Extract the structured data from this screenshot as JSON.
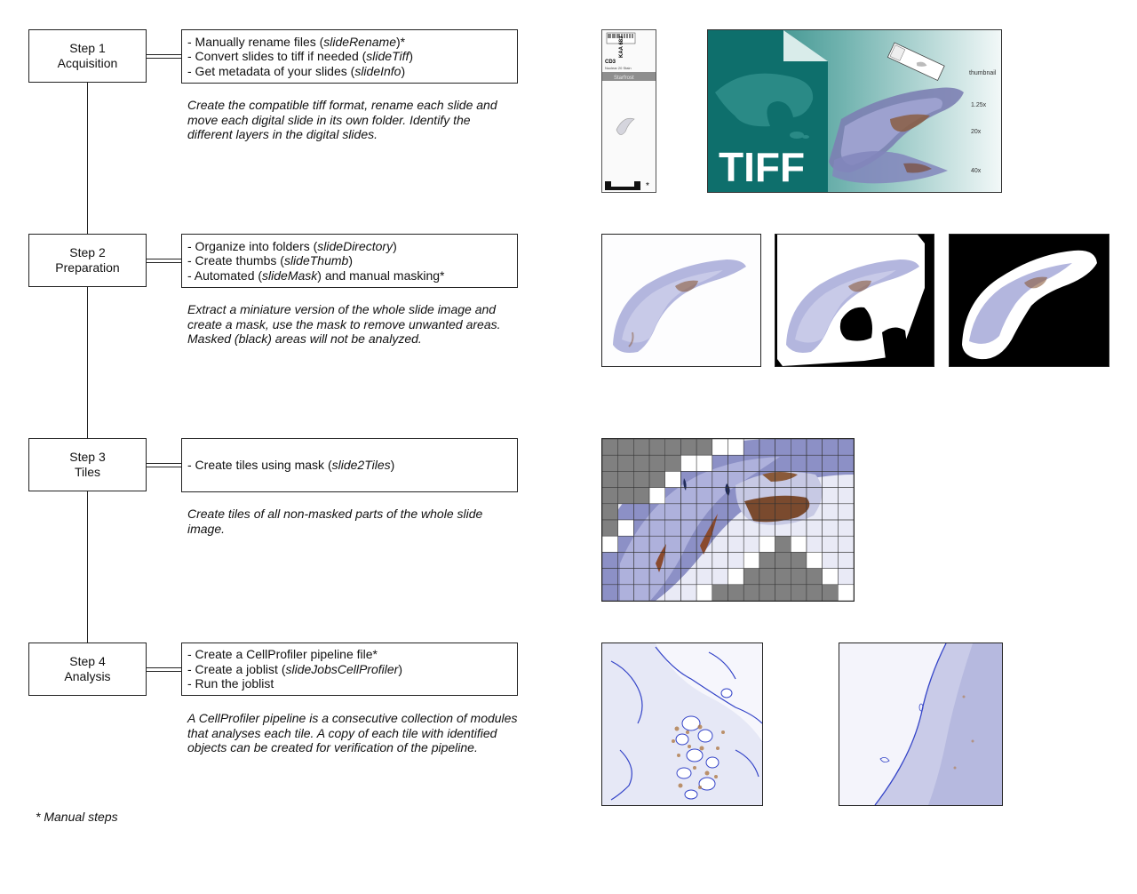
{
  "steps": [
    {
      "title": "Step 1",
      "subtitle": "Acquisition",
      "lines": [
        {
          "pre": "- Manually rename files (",
          "fn": "slideRename",
          "post": ")*"
        },
        {
          "pre": "- Convert slides to tiff if needed (",
          "fn": "slideTiff",
          "post": ")"
        },
        {
          "pre": "- Get metadata of your slides (",
          "fn": "slideInfo",
          "post": ")"
        }
      ],
      "description": "Create the compatible tiff format, rename each slide and move each digital slide in its own folder. Identify the different layers in the digital slides."
    },
    {
      "title": "Step 2",
      "subtitle": "Preparation",
      "lines": [
        {
          "pre": "- Organize into folders (",
          "fn": "slideDirectory",
          "post": ")"
        },
        {
          "pre": "- Create thumbs (",
          "fn": "slideThumb",
          "post": ")"
        },
        {
          "pre": "- Automated (",
          "fn": "slideMask",
          "post": ") and manual masking*"
        }
      ],
      "description": "Extract a miniature version of the whole slide image and create a mask, use the mask to remove unwanted areas. Masked (black) areas will not be analyzed."
    },
    {
      "title": "Step 3",
      "subtitle": "Tiles",
      "lines": [
        {
          "pre": "- Create tiles using mask (",
          "fn": "slide2Tiles",
          "post": ")"
        }
      ],
      "description": "Create tiles of all non-masked parts of the whole slide image."
    },
    {
      "title": "Step 4",
      "subtitle": "Analysis",
      "lines": [
        {
          "pre": "- Create a CellProfiler pipeline file*",
          "fn": "",
          "post": ""
        },
        {
          "pre": "- Create a joblist (",
          "fn": "slideJobsCellProfiler",
          "post": ")"
        },
        {
          "pre": "- Run the joblist",
          "fn": "",
          "post": ""
        }
      ],
      "description": "A CellProfiler pipeline is a consecutive collection of modules that analyses each tile. A copy of each tile with identified objects can be created for verification of the pipeline."
    }
  ],
  "footnote": "* Manual steps",
  "slide_label": {
    "barcode": "KAA 683",
    "stain": "CD3",
    "small": "Nuclear 20 Stain",
    "brand": "Starfrost",
    "asterisk": "*"
  },
  "tiff_figure": {
    "word": "TIFF",
    "layers": [
      "thumbnail",
      "1.25x",
      "20x",
      "40x"
    ]
  },
  "colors": {
    "tissue": "#a9add8",
    "brown": "#8a5a3a",
    "mask_black": "#000000",
    "tile_gray": "#808080",
    "tiff_teal": "#0e6f6c"
  }
}
